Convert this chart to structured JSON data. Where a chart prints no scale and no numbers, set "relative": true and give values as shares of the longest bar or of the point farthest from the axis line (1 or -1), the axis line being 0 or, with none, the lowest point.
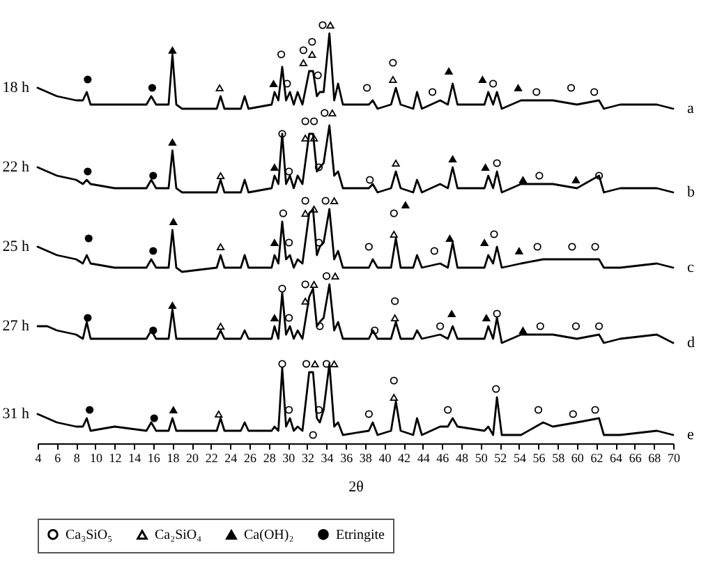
{
  "chart_data": {
    "type": "line",
    "relative": true,
    "xlabel": "2θ",
    "xlim": [
      4,
      70
    ],
    "xticks": [
      4,
      6,
      8,
      10,
      12,
      14,
      16,
      18,
      20,
      22,
      24,
      26,
      28,
      30,
      32,
      34,
      36,
      38,
      40,
      42,
      44,
      46,
      48,
      50,
      52,
      54,
      56,
      58,
      60,
      62,
      64,
      66,
      68,
      70
    ],
    "grid": false,
    "legend": "bottom",
    "x": [
      4,
      5,
      6,
      8,
      8.7,
      9.1,
      9.5,
      12,
      15.3,
      15.8,
      16.3,
      17.6,
      18.0,
      18.4,
      19,
      22.6,
      23.0,
      23.4,
      25.1,
      25.5,
      25.9,
      28.3,
      28.6,
      29.0,
      29.4,
      29.8,
      30.2,
      30.6,
      31.0,
      31.5,
      32.2,
      32.6,
      33.0,
      33.3,
      33.7,
      34.3,
      34.8,
      35.2,
      35.7,
      38.4,
      38.8,
      39.3,
      40.7,
      41.2,
      41.7,
      43.0,
      43.4,
      43.9,
      45.8,
      46.6,
      47.1,
      47.6,
      50.4,
      50.8,
      51.3,
      51.7,
      52.2,
      54.2,
      56.5,
      57.5,
      60.0,
      62.3,
      62.8,
      64.5,
      68.3,
      70
    ],
    "series": [
      {
        "name": "18 h",
        "color": "#000000",
        "values": [
          0.85,
          0.84,
          0.83,
          0.82,
          0.82,
          0.84,
          0.81,
          0.81,
          0.81,
          0.83,
          0.81,
          0.81,
          0.93,
          0.81,
          0.8,
          0.8,
          0.83,
          0.8,
          0.8,
          0.83,
          0.8,
          0.81,
          0.84,
          0.82,
          0.9,
          0.82,
          0.84,
          0.81,
          0.84,
          0.81,
          0.89,
          0.89,
          0.83,
          0.84,
          0.84,
          0.98,
          0.82,
          0.86,
          0.81,
          0.81,
          0.82,
          0.8,
          0.81,
          0.85,
          0.81,
          0.8,
          0.84,
          0.8,
          0.82,
          0.81,
          0.86,
          0.81,
          0.81,
          0.84,
          0.81,
          0.84,
          0.8,
          0.82,
          0.82,
          0.82,
          0.81,
          0.82,
          0.8,
          0.81,
          0.81,
          0.8
        ]
      },
      {
        "name": "22 h",
        "color": "#000000",
        "values": [
          0.66,
          0.65,
          0.64,
          0.63,
          0.62,
          0.63,
          0.62,
          0.61,
          0.61,
          0.63,
          0.61,
          0.61,
          0.7,
          0.61,
          0.6,
          0.6,
          0.63,
          0.6,
          0.6,
          0.63,
          0.6,
          0.61,
          0.64,
          0.62,
          0.74,
          0.62,
          0.64,
          0.61,
          0.64,
          0.62,
          0.74,
          0.74,
          0.65,
          0.66,
          0.67,
          0.76,
          0.64,
          0.65,
          0.61,
          0.61,
          0.62,
          0.6,
          0.61,
          0.65,
          0.61,
          0.6,
          0.63,
          0.6,
          0.62,
          0.61,
          0.66,
          0.61,
          0.61,
          0.64,
          0.61,
          0.65,
          0.6,
          0.62,
          0.62,
          0.62,
          0.61,
          0.64,
          0.6,
          0.61,
          0.61,
          0.6
        ]
      },
      {
        "name": "25 h",
        "color": "#000000",
        "values": [
          0.47,
          0.46,
          0.45,
          0.44,
          0.43,
          0.45,
          0.43,
          0.42,
          0.42,
          0.44,
          0.42,
          0.42,
          0.51,
          0.42,
          0.41,
          0.42,
          0.45,
          0.42,
          0.42,
          0.45,
          0.42,
          0.42,
          0.45,
          0.43,
          0.53,
          0.44,
          0.45,
          0.42,
          0.44,
          0.43,
          0.55,
          0.56,
          0.45,
          0.47,
          0.48,
          0.56,
          0.44,
          0.46,
          0.42,
          0.42,
          0.44,
          0.42,
          0.42,
          0.49,
          0.42,
          0.42,
          0.45,
          0.42,
          0.43,
          0.42,
          0.48,
          0.42,
          0.42,
          0.45,
          0.43,
          0.47,
          0.42,
          0.43,
          0.44,
          0.44,
          0.44,
          0.44,
          0.42,
          0.42,
          0.43,
          0.42
        ]
      },
      {
        "name": "27 h",
        "color": "#000000",
        "values": [
          0.28,
          0.28,
          0.27,
          0.26,
          0.25,
          0.29,
          0.25,
          0.25,
          0.25,
          0.27,
          0.25,
          0.25,
          0.32,
          0.25,
          0.25,
          0.25,
          0.27,
          0.25,
          0.25,
          0.27,
          0.25,
          0.25,
          0.28,
          0.25,
          0.36,
          0.26,
          0.28,
          0.25,
          0.27,
          0.25,
          0.35,
          0.37,
          0.28,
          0.29,
          0.3,
          0.38,
          0.27,
          0.29,
          0.25,
          0.25,
          0.27,
          0.25,
          0.25,
          0.29,
          0.25,
          0.25,
          0.27,
          0.25,
          0.26,
          0.25,
          0.28,
          0.25,
          0.25,
          0.28,
          0.25,
          0.3,
          0.24,
          0.26,
          0.26,
          0.26,
          0.25,
          0.26,
          0.24,
          0.25,
          0.26,
          0.24
        ]
      },
      {
        "name": "31 h",
        "color": "#000000",
        "values": [
          0.07,
          0.06,
          0.05,
          0.04,
          0.04,
          0.06,
          0.03,
          0.04,
          0.03,
          0.05,
          0.03,
          0.03,
          0.06,
          0.03,
          0.03,
          0.03,
          0.06,
          0.03,
          0.03,
          0.05,
          0.03,
          0.03,
          0.04,
          0.03,
          0.18,
          0.04,
          0.06,
          0.03,
          0.04,
          0.03,
          0.17,
          0.17,
          0.06,
          0.05,
          0.08,
          0.19,
          0.04,
          0.05,
          0.02,
          0.03,
          0.05,
          0.02,
          0.03,
          0.1,
          0.03,
          0.02,
          0.06,
          0.02,
          0.04,
          0.04,
          0.06,
          0.04,
          0.03,
          0.04,
          0.02,
          0.11,
          0.02,
          0.02,
          0.05,
          0.04,
          0.05,
          0.06,
          0.02,
          0.02,
          0.03,
          0.02
        ]
      },
      {
        "name": "Ca₃SiO₅",
        "type": "scatter",
        "marker": "circle",
        "color": "#000000",
        "x": [
          29.3,
          29.9,
          31.6,
          32.5,
          33.1,
          33.6,
          38.2,
          40.9,
          45.0,
          51.3,
          55.8,
          59.4,
          61.8,
          29.4,
          30.1,
          31.8,
          32.7,
          33.2,
          33.8,
          38.5,
          51.7,
          56.1,
          62.3,
          29.5,
          30.1,
          31.8,
          33.2,
          33.9,
          38.4,
          41.0,
          45.2,
          51.4,
          55.9,
          59.5,
          61.9,
          29.4,
          30.1,
          31.8,
          33.3,
          34.0,
          39.0,
          41.1,
          45.8,
          51.7,
          56.2,
          59.9,
          62.3,
          29.4,
          30.1,
          31.9,
          32.6,
          33.2,
          34.0,
          38.4,
          41.0,
          46.6,
          51.6,
          56.0,
          59.6,
          61.9
        ],
        "values": [
          0.93,
          0.86,
          0.94,
          0.96,
          0.88,
          1.0,
          0.85,
          0.91,
          0.84,
          0.86,
          0.84,
          0.85,
          0.84,
          0.74,
          0.65,
          0.77,
          0.77,
          0.66,
          0.79,
          0.63,
          0.67,
          0.64,
          0.64,
          0.55,
          0.48,
          0.58,
          0.48,
          0.58,
          0.47,
          0.55,
          0.46,
          0.5,
          0.47,
          0.47,
          0.47,
          0.37,
          0.3,
          0.38,
          0.28,
          0.4,
          0.27,
          0.34,
          0.28,
          0.31,
          0.28,
          0.28,
          0.28,
          0.19,
          0.08,
          0.19,
          0.02,
          0.08,
          0.19,
          0.07,
          0.15,
          0.08,
          0.13,
          0.08,
          0.07,
          0.08
        ]
      },
      {
        "name": "Ca₂SiO₄",
        "type": "scatter",
        "marker": "triangle",
        "color": "#000000",
        "x": [
          22.9,
          31.6,
          32.5,
          34.4,
          40.9,
          23.0,
          31.8,
          32.7,
          34.6,
          41.2,
          23.0,
          31.8,
          32.7,
          34.8,
          41.0,
          23.0,
          31.8,
          32.7,
          34.9,
          41.1,
          22.8,
          32.8,
          34.8,
          41.0
        ],
        "values": [
          0.85,
          0.91,
          0.93,
          1.0,
          0.87,
          0.64,
          0.73,
          0.73,
          0.79,
          0.67,
          0.47,
          0.55,
          0.56,
          0.58,
          0.5,
          0.28,
          0.34,
          0.38,
          0.4,
          0.3,
          0.07,
          0.19,
          0.19,
          0.11
        ]
      },
      {
        "name": "Ca(OH)₂",
        "type": "scatter",
        "marker": "triangle",
        "color": "#000000",
        "x": [
          18.0,
          28.5,
          46.7,
          50.2,
          53.9,
          18.0,
          28.6,
          47.1,
          50.5,
          54.4,
          59.9,
          18.1,
          28.6,
          42.2,
          46.8,
          50.4,
          54.0,
          18.0,
          28.6,
          47.0,
          50.6,
          54.4,
          18.1
        ],
        "values": [
          0.94,
          0.86,
          0.89,
          0.87,
          0.85,
          0.72,
          0.66,
          0.68,
          0.66,
          0.63,
          0.63,
          0.53,
          0.48,
          0.57,
          0.49,
          0.48,
          0.46,
          0.33,
          0.3,
          0.31,
          0.3,
          0.27,
          0.08
        ]
      },
      {
        "name": "Etringite",
        "type": "scatter",
        "marker": "circle",
        "color": "#000000",
        "x": [
          9.2,
          15.9,
          9.2,
          16.0,
          9.3,
          16.0,
          9.2,
          16.0,
          9.4,
          16.1
        ],
        "values": [
          0.87,
          0.85,
          0.65,
          0.64,
          0.49,
          0.46,
          0.3,
          0.27,
          0.08,
          0.06
        ]
      }
    ],
    "annotations": [
      "a",
      "b",
      "c",
      "d",
      "e"
    ]
  }
}
